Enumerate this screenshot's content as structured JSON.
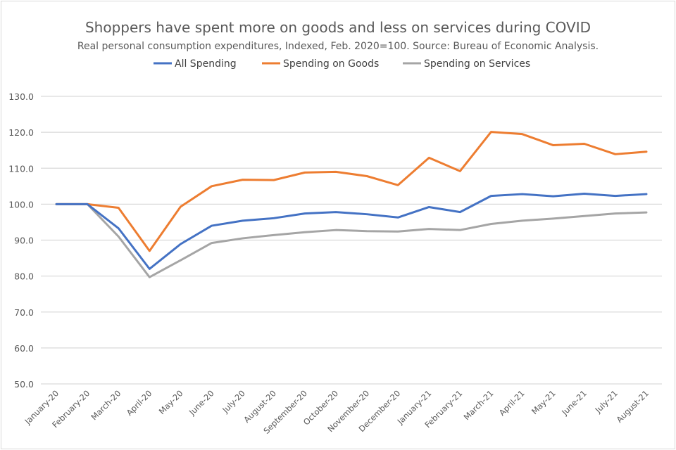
{
  "chart_data": {
    "type": "line",
    "title": "Shoppers have spent more on goods and less on services during COVID",
    "subtitle": "Real personal consumption expenditures, Indexed, Feb. 2020=100. Source: Bureau of Economic Analysis.",
    "xlabel": "",
    "ylabel": "",
    "ylim": [
      50,
      130
    ],
    "yticks": [
      "50.0",
      "60.0",
      "70.0",
      "80.0",
      "90.0",
      "100.0",
      "110.0",
      "120.0",
      "130.0"
    ],
    "grid": true,
    "legend": "top",
    "categories": [
      "January-20",
      "February-20",
      "March-20",
      "April-20",
      "May-20",
      "June-20",
      "July-20",
      "August-20",
      "September-20",
      "October-20",
      "November-20",
      "December-20",
      "January-21",
      "February-21",
      "March-21",
      "April-21",
      "May-21",
      "June-21",
      "July-21",
      "August-21"
    ],
    "series": [
      {
        "name": "All Spending",
        "color": "#4472c4",
        "values": [
          100,
          100,
          93.3,
          82.0,
          88.9,
          94.0,
          95.4,
          96.1,
          97.4,
          97.8,
          97.2,
          96.3,
          99.2,
          97.8,
          102.3,
          102.8,
          102.2,
          102.9,
          102.3,
          102.8
        ]
      },
      {
        "name": "Spending on Goods",
        "color": "#ed7d31",
        "values": [
          100,
          100,
          99.0,
          87.0,
          99.3,
          105.0,
          106.8,
          106.7,
          108.8,
          109.0,
          107.8,
          105.3,
          112.9,
          109.2,
          120.1,
          119.5,
          116.4,
          116.8,
          113.9,
          114.6
        ]
      },
      {
        "name": "Spending on Services",
        "color": "#a5a5a5",
        "values": [
          100,
          100,
          91.0,
          79.7,
          84.4,
          89.2,
          90.5,
          91.4,
          92.2,
          92.8,
          92.5,
          92.4,
          93.1,
          92.8,
          94.5,
          95.4,
          96.0,
          96.7,
          97.4,
          97.7
        ]
      }
    ]
  }
}
